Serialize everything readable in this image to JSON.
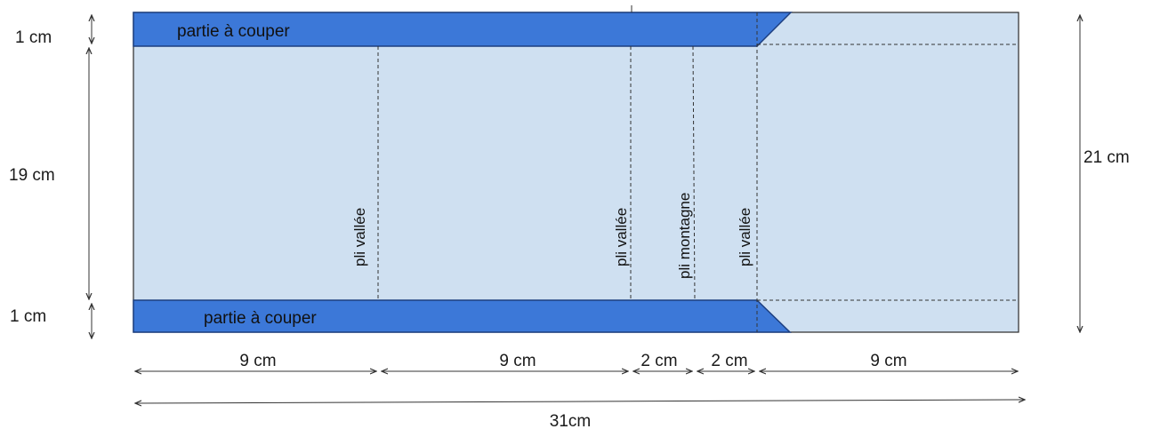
{
  "template": {
    "band_label": "partie à couper",
    "folds": [
      {
        "label": "pli vallée"
      },
      {
        "label": "pli vallée"
      },
      {
        "label": "pli montagne"
      },
      {
        "label": "pli vallée"
      }
    ],
    "left_dims": [
      {
        "label": "1 cm"
      },
      {
        "label": "19 cm"
      },
      {
        "label": "1 cm"
      }
    ],
    "right_dim": {
      "label": "21 cm"
    },
    "bottom_dims": [
      {
        "label": "9 cm"
      },
      {
        "label": "9 cm"
      },
      {
        "label": "2 cm"
      },
      {
        "label": "2 cm"
      },
      {
        "label": "9 cm"
      }
    ],
    "total_dim": {
      "label": "31cm"
    }
  },
  "colors": {
    "sheet_fill": "#cfe0f1",
    "band_fill": "#3c78d8",
    "outline": "#2a2a2a"
  }
}
